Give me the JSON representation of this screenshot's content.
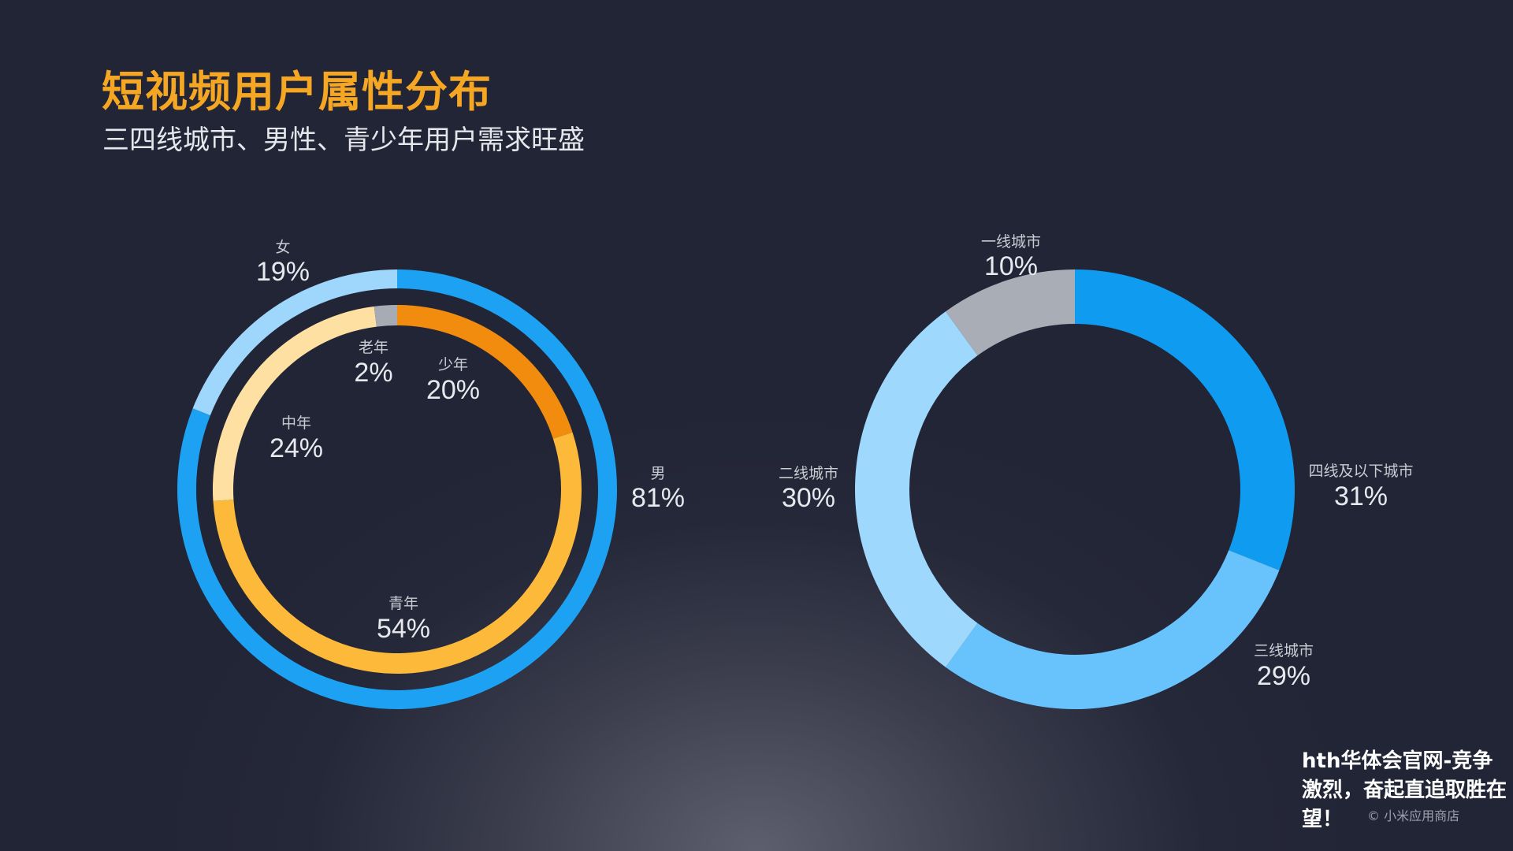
{
  "header": {
    "title": "短视频用户属性分布",
    "subtitle": "三四线城市、男性、青少年用户需求旺盛"
  },
  "chart_data": [
    {
      "type": "pie",
      "variant": "donut",
      "ring": "outer",
      "categories": [
        "男",
        "女"
      ],
      "values": [
        81,
        19
      ],
      "labels": [
        "81%",
        "19%"
      ],
      "colors": [
        "#1da1f2",
        "#9fd6fb"
      ]
    },
    {
      "type": "pie",
      "variant": "donut",
      "ring": "inner",
      "categories": [
        "少年",
        "青年",
        "中年",
        "老年"
      ],
      "values": [
        20,
        54,
        24,
        2
      ],
      "labels": [
        "20%",
        "54%",
        "24%",
        "2%"
      ],
      "colors": [
        "#f28c0e",
        "#fdb93a",
        "#fde0a2",
        "#a7abb4"
      ]
    },
    {
      "type": "pie",
      "variant": "donut",
      "categories": [
        "四线及以下城市",
        "三线城市",
        "二线城市",
        "一线城市"
      ],
      "values": [
        31,
        29,
        30,
        10
      ],
      "labels": [
        "31%",
        "29%",
        "30%",
        "10%"
      ],
      "colors": [
        "#0f9bef",
        "#68c2fc",
        "#9fd8fd",
        "#a9adb6"
      ]
    }
  ],
  "watermark": {
    "text": "hth华体会官网-竞争激烈，奋起直追取胜在望！",
    "copyright": "© 小米应用商店"
  }
}
